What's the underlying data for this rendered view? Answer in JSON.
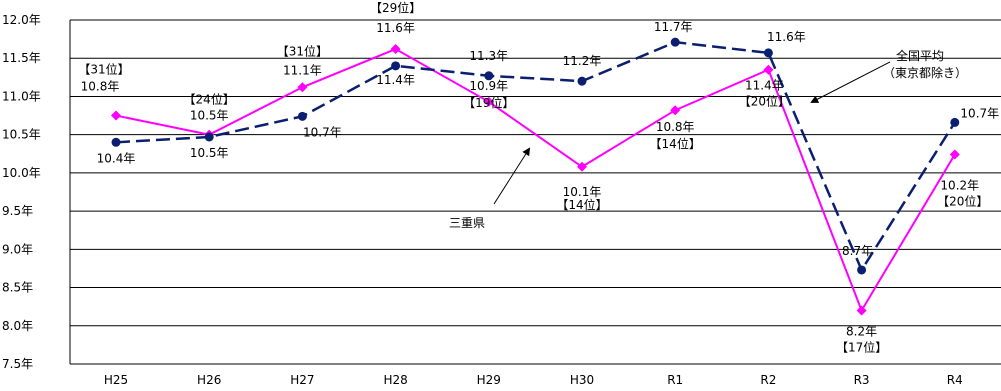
{
  "chart_data": {
    "type": "line",
    "categories": [
      "H25",
      "H26",
      "H27",
      "H28",
      "H29",
      "H30",
      "R1",
      "R2",
      "R3",
      "R4"
    ],
    "ylim": [
      7.5,
      12.0
    ],
    "yticks": [
      "7.5年",
      "8.0年",
      "8.5年",
      "9.0年",
      "9.5年",
      "10.0年",
      "10.5年",
      "11.0年",
      "11.5年",
      "12.0年"
    ],
    "grid": true,
    "series": [
      {
        "name": "三重県",
        "color": "#ff00ff",
        "style": "solid",
        "marker": "diamond",
        "values": [
          10.75,
          10.5,
          11.12,
          11.62,
          10.93,
          10.08,
          10.82,
          11.35,
          8.2,
          10.24
        ],
        "labels": [
          "10.8年",
          "10.5年",
          "11.1年",
          "11.6年",
          "10.9年",
          "10.1年",
          "10.8年",
          "11.4年",
          "8.2年",
          "10.2年"
        ],
        "ranks": [
          "【31位】",
          "【24位】",
          "【31位】",
          "【29位】",
          "【19位】",
          "【14位】",
          "【14位】",
          "【20位】",
          "【17位】",
          "【20位】"
        ]
      },
      {
        "name": "全国平均",
        "name_sub": "（東京都除き）",
        "color": "#0a1f70",
        "style": "dashed",
        "marker": "circle",
        "values": [
          10.4,
          10.47,
          10.74,
          11.4,
          11.27,
          11.2,
          11.71,
          11.57,
          8.73,
          10.66
        ],
        "labels": [
          "10.4年",
          "10.5年",
          "10.7年",
          "11.4年",
          "11.3年",
          "11.2年",
          "11.7年",
          "11.6年",
          "8.7年",
          "10.7年"
        ]
      }
    ]
  }
}
